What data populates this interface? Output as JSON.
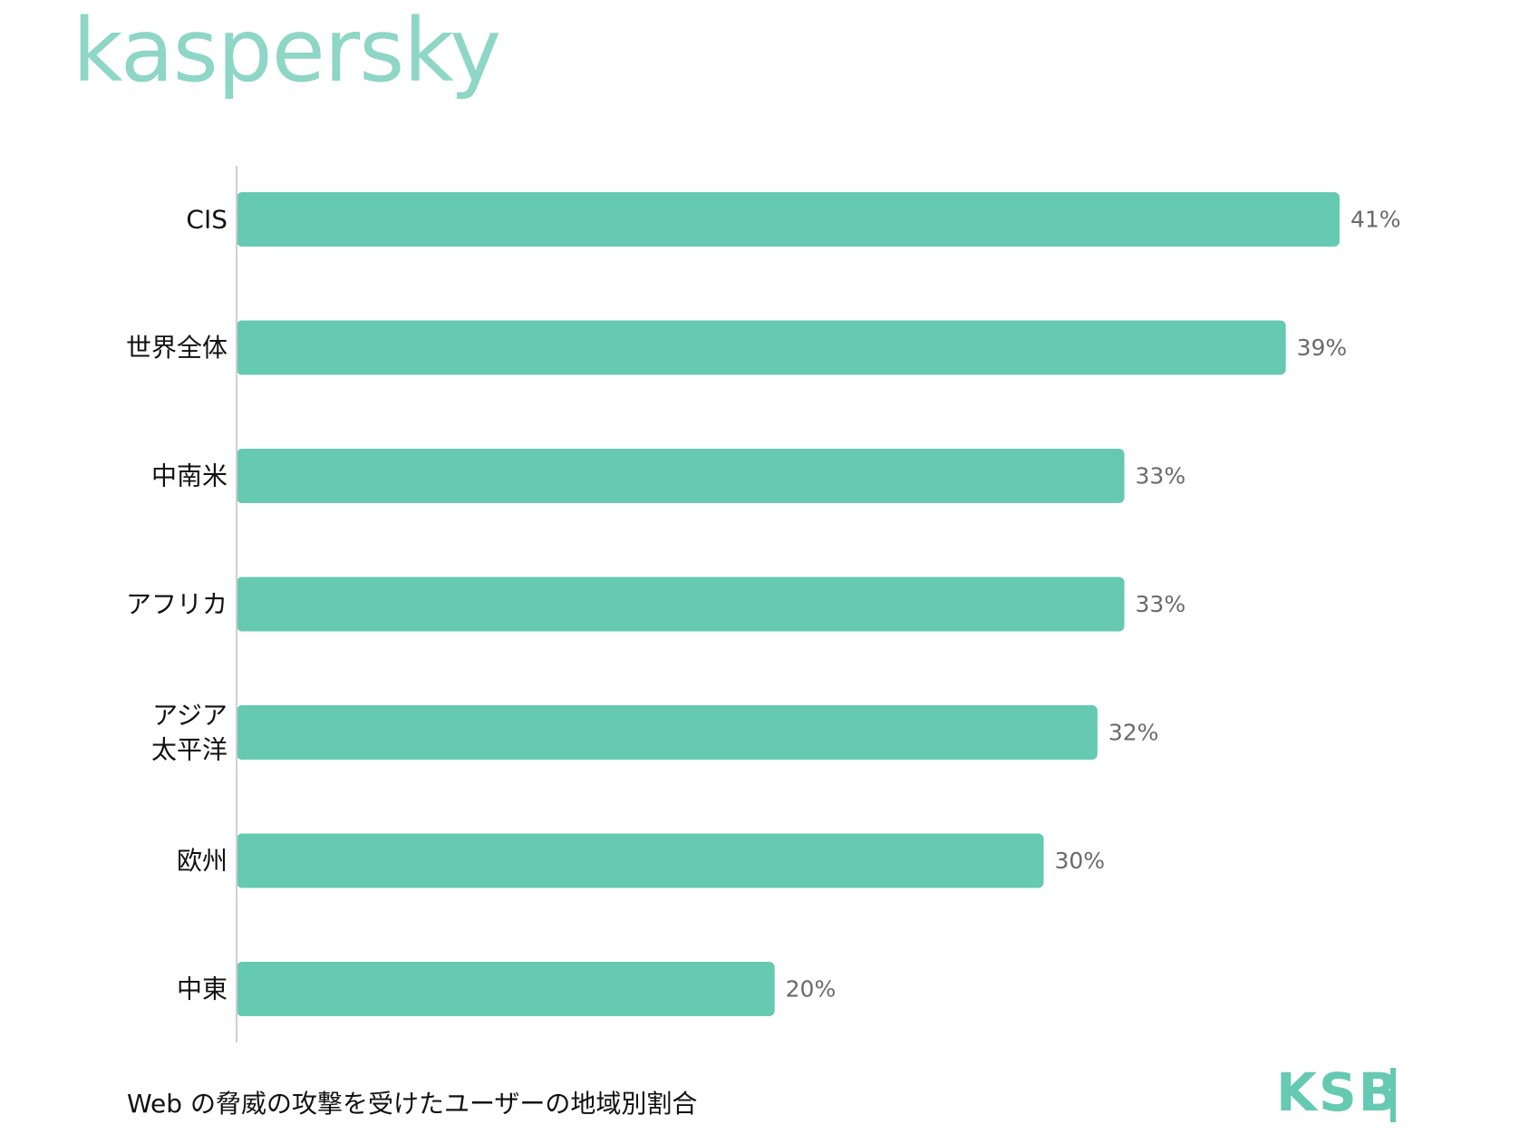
{
  "brand": {
    "logo_text": "kaspersky",
    "logo_color": "#8ed6c6",
    "badge_text": "KSB",
    "badge_color": "#66c9b2"
  },
  "caption": "Web の脅威の攻撃を受けたユーザーの地域別割合",
  "chart_data": {
    "type": "bar",
    "orientation": "horizontal",
    "categories": [
      "CIS",
      "世界全体",
      "中南米",
      "アフリカ",
      "アジア\n太平洋",
      "欧州",
      "中東"
    ],
    "values": [
      41,
      39,
      33,
      33,
      32,
      30,
      20
    ],
    "value_labels": [
      "41%",
      "39%",
      "33%",
      "33%",
      "32%",
      "30%",
      "20%"
    ],
    "unit": "%",
    "title": "",
    "xlabel": "",
    "ylabel": "",
    "xlim": [
      0,
      41
    ],
    "grid": false,
    "legend": "none",
    "bar_color": "#66c9b2",
    "axis_color": "#d0d0d0"
  }
}
